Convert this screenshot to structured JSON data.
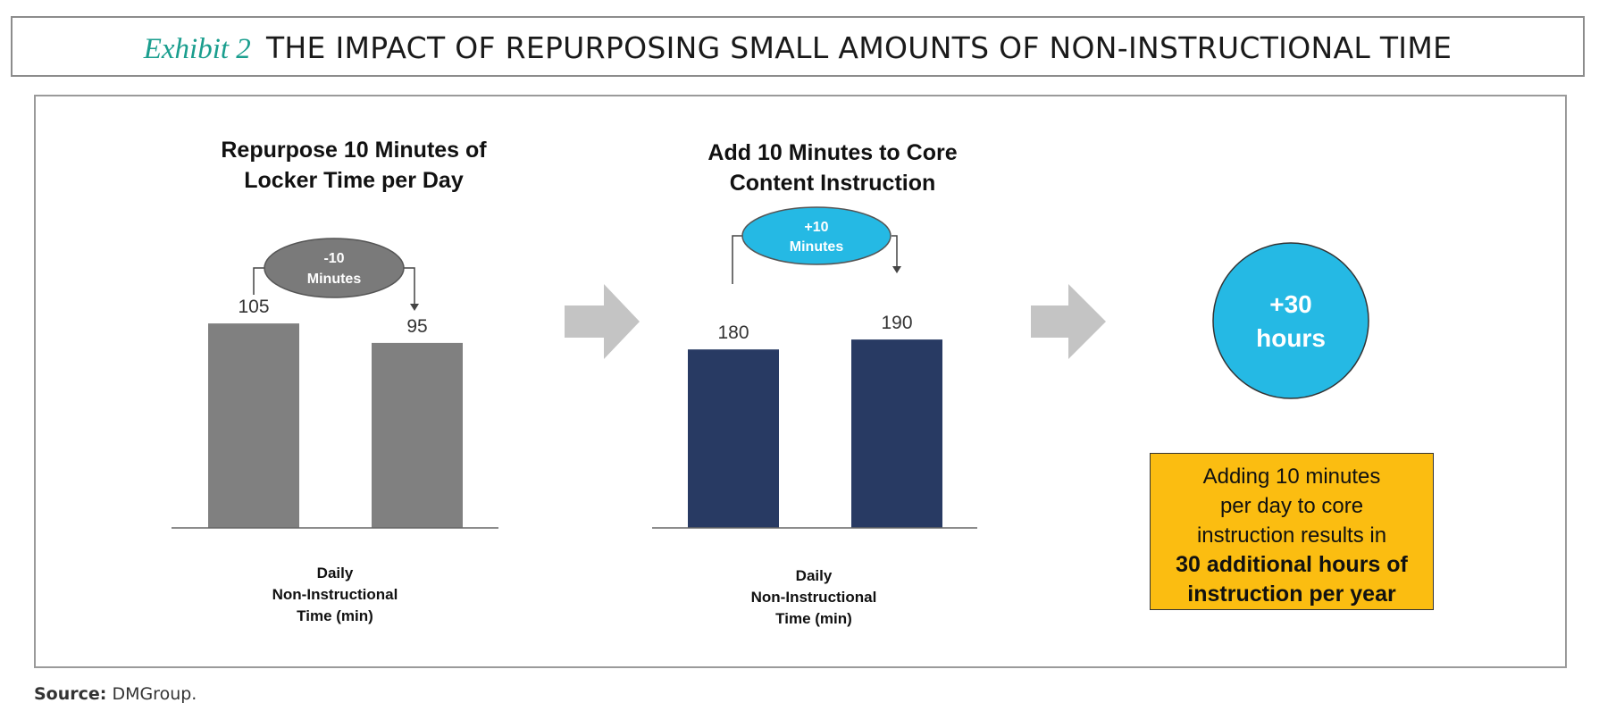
{
  "header": {
    "exhibit_label": "Exhibit 2",
    "title": "THE IMPACT OF REPURPOSING SMALL AMOUNTS OF NON-INSTRUCTIONAL TIME"
  },
  "chart_data": [
    {
      "type": "bar",
      "title_lines": [
        "Repurpose 10 Minutes of",
        "Locker Time per Day"
      ],
      "values": [
        105,
        95
      ],
      "value_labels": [
        "105",
        "95"
      ],
      "bar_color": "#808080",
      "change_label_lines": [
        "-10",
        "Minutes"
      ],
      "change_bubble_color": "#7a7a7a",
      "axis_label_lines": [
        "Daily",
        "Non-Instructional",
        "Time (min)"
      ]
    },
    {
      "type": "bar",
      "title_lines": [
        "Add 10 Minutes to Core",
        "Content Instruction"
      ],
      "values": [
        180,
        190
      ],
      "value_labels": [
        "180",
        "190"
      ],
      "bar_color": "#283a63",
      "change_label_lines": [
        "+10",
        "Minutes"
      ],
      "change_bubble_color": "#25b9e4",
      "axis_label_lines": [
        "Daily",
        "Non-Instructional",
        "Time (min)"
      ]
    }
  ],
  "result": {
    "circle_lines": [
      "+30",
      "hours"
    ],
    "circle_color": "#25b9e4",
    "callout_lines": [
      "Adding 10 minutes",
      "per day to core",
      "instruction results in"
    ],
    "callout_bold_lines": [
      "30 additional hours of",
      "instruction per year"
    ],
    "callout_color": "#fbbd11"
  },
  "arrow_color": "#c4c4c4",
  "source": {
    "label": "Source:",
    "text": "DMGroup."
  }
}
